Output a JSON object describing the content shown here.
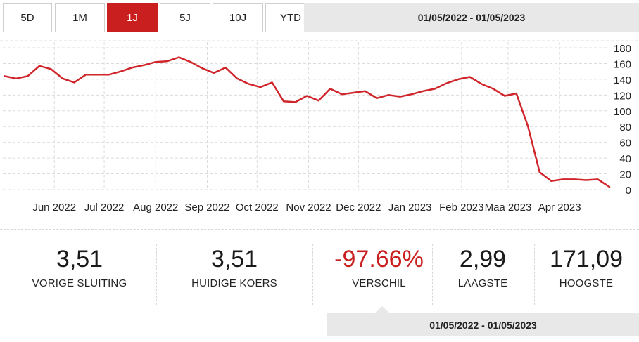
{
  "range_buttons": [
    {
      "label": "5D",
      "active": false
    },
    {
      "label": "1M",
      "active": false
    },
    {
      "label": "1J",
      "active": true
    },
    {
      "label": "5J",
      "active": false
    },
    {
      "label": "10J",
      "active": false
    },
    {
      "label": "YTD",
      "active": false
    }
  ],
  "date_range": "01/05/2022 - 01/05/2023",
  "colors": {
    "accent": "#c9201f",
    "line": "#d0262b",
    "grid": "#dcdcdc",
    "panel": "#e8e8e8"
  },
  "chart_data": {
    "type": "line",
    "title": "",
    "xlabel": "",
    "ylabel": "",
    "x_tick_labels": [
      "Jun 2022",
      "Jul 2022",
      "Aug 2022",
      "Sep 2022",
      "Oct 2022",
      "Nov 2022",
      "Dec 2022",
      "Jan 2023",
      "Feb 2023",
      "Maa 2023",
      "Apr 2023"
    ],
    "y_ticks": [
      0,
      20,
      40,
      60,
      80,
      100,
      120,
      140,
      160,
      180
    ],
    "ylim": [
      0,
      180
    ],
    "xlim": [
      "2022-05-01",
      "2023-05-01"
    ],
    "grid": true,
    "y_axis_position": "right",
    "series": [
      {
        "points": [
          [
            "2022-05-02",
            144
          ],
          [
            "2022-05-09",
            141
          ],
          [
            "2022-05-16",
            144
          ],
          [
            "2022-05-23",
            157
          ],
          [
            "2022-05-30",
            153
          ],
          [
            "2022-06-06",
            141
          ],
          [
            "2022-06-13",
            136
          ],
          [
            "2022-06-20",
            146
          ],
          [
            "2022-06-27",
            146
          ],
          [
            "2022-07-04",
            146
          ],
          [
            "2022-07-11",
            150
          ],
          [
            "2022-07-18",
            155
          ],
          [
            "2022-07-25",
            158
          ],
          [
            "2022-08-01",
            162
          ],
          [
            "2022-08-08",
            163
          ],
          [
            "2022-08-15",
            168
          ],
          [
            "2022-08-22",
            162
          ],
          [
            "2022-08-29",
            154
          ],
          [
            "2022-09-05",
            148
          ],
          [
            "2022-09-12",
            155
          ],
          [
            "2022-09-19",
            141
          ],
          [
            "2022-09-26",
            134
          ],
          [
            "2022-10-03",
            130
          ],
          [
            "2022-10-10",
            136
          ],
          [
            "2022-10-17",
            112
          ],
          [
            "2022-10-24",
            111
          ],
          [
            "2022-10-31",
            119
          ],
          [
            "2022-11-07",
            113
          ],
          [
            "2022-11-14",
            128
          ],
          [
            "2022-11-21",
            121
          ],
          [
            "2022-11-28",
            123
          ],
          [
            "2022-12-05",
            125
          ],
          [
            "2022-12-12",
            116
          ],
          [
            "2022-12-19",
            120
          ],
          [
            "2022-12-26",
            118
          ],
          [
            "2023-01-02",
            121
          ],
          [
            "2023-01-09",
            125
          ],
          [
            "2023-01-16",
            128
          ],
          [
            "2023-01-23",
            135
          ],
          [
            "2023-01-30",
            140
          ],
          [
            "2023-02-06",
            143
          ],
          [
            "2023-02-13",
            134
          ],
          [
            "2023-02-20",
            128
          ],
          [
            "2023-02-27",
            119
          ],
          [
            "2023-03-06",
            122
          ],
          [
            "2023-03-13",
            80
          ],
          [
            "2023-03-20",
            22
          ],
          [
            "2023-03-27",
            11
          ],
          [
            "2023-04-03",
            13
          ],
          [
            "2023-04-10",
            13
          ],
          [
            "2023-04-17",
            12
          ],
          [
            "2023-04-24",
            13
          ],
          [
            "2023-05-01",
            3.51
          ]
        ]
      }
    ]
  },
  "stats": {
    "prev_close_value": "3,51",
    "prev_close_label": "VORIGE SLUITING",
    "current_value": "3,51",
    "current_label": "HUIDIGE KOERS",
    "change_value": "-97.66%",
    "change_label": "VERSCHIL",
    "low_value": "2,99",
    "low_label": "LAAGSTE",
    "high_value": "171,09",
    "high_label": "HOOGSTE"
  },
  "period": "01/05/2022 - 01/05/2023"
}
